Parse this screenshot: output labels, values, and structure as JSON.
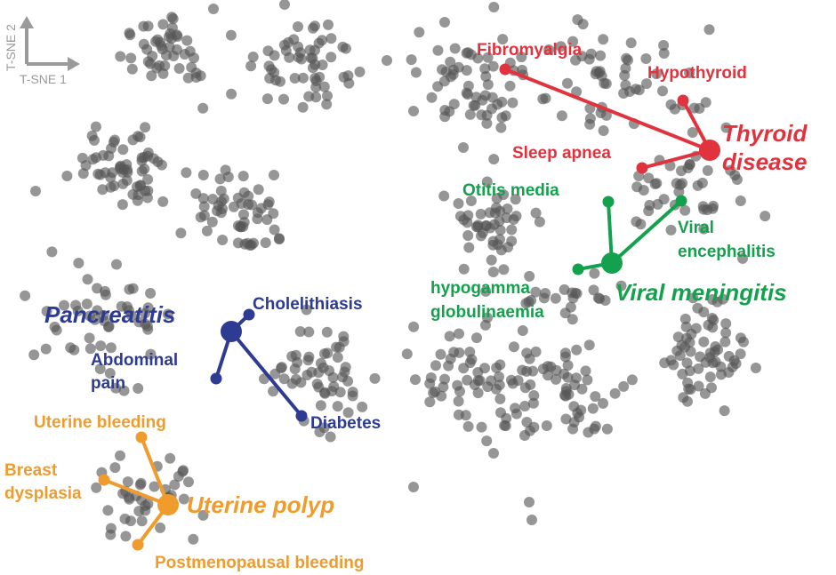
{
  "chart_data": {
    "type": "scatter",
    "xlabel": "T-SNE 1",
    "ylabel": "T-SNE 2",
    "grid": false,
    "legend": "none",
    "background_points_color": "#555555",
    "clusters": [
      {
        "name": "Thyroid disease",
        "name_lines": [
          "Thyroid",
          "disease"
        ],
        "color": "#e0333d",
        "hub": [
          798,
          169
        ],
        "spokes": [
          {
            "label": "Fibromyalgia",
            "point": [
              568,
              78
            ]
          },
          {
            "label": "Hypothyroid",
            "point": [
              768,
              113
            ]
          },
          {
            "label": "Sleep apnea",
            "point": [
              722,
              189
            ]
          }
        ]
      },
      {
        "name": "Viral meningitis",
        "name_lines": [
          "Viral meningitis"
        ],
        "color": "#14a14d",
        "hub": [
          688,
          296
        ],
        "spokes": [
          {
            "label": "Otitis media",
            "point": [
              684,
              227
            ]
          },
          {
            "label": "Viral encephalitis",
            "label_lines": [
              "Viral",
              "encephalitis"
            ],
            "point": [
              766,
              226
            ]
          },
          {
            "label": "hypogamma globulinaemia",
            "label_lines": [
              "hypogamma",
              "globulinaemia"
            ],
            "point": [
              650,
              303
            ]
          }
        ]
      },
      {
        "name": "Pancreatitis",
        "name_lines": [
          "Pancreatitis"
        ],
        "color": "#2e3b93",
        "hub": [
          260,
          373
        ],
        "spokes": [
          {
            "label": "Cholelithiasis",
            "point": [
              280,
              354
            ]
          },
          {
            "label": "Abdominal pain",
            "label_lines": [
              "Abdominal",
              "pain"
            ],
            "point": [
              243,
              426
            ]
          },
          {
            "label": "Diabetes",
            "point": [
              339,
              468
            ]
          }
        ]
      },
      {
        "name": "Uterine polyp",
        "name_lines": [
          "Uterine polyp"
        ],
        "color": "#f09c2d",
        "hub": [
          189,
          568
        ],
        "spokes": [
          {
            "label": "Uterine bleeding",
            "point": [
              159,
              492
            ]
          },
          {
            "label": "Breast dysplasia",
            "label_lines": [
              "Breast",
              "dysplasia"
            ],
            "point": [
              117,
              540
            ]
          },
          {
            "label": "Postmenopausal bleeding",
            "point": [
              155,
              613
            ]
          }
        ]
      }
    ],
    "background_groups": [
      {
        "center": [
          185,
          55
        ],
        "spread": [
          45,
          35
        ],
        "count": 45
      },
      {
        "center": [
          345,
          75
        ],
        "spread": [
          55,
          45
        ],
        "count": 55
      },
      {
        "center": [
          140,
          190
        ],
        "spread": [
          50,
          45
        ],
        "count": 60
      },
      {
        "center": [
          270,
          235
        ],
        "spread": [
          45,
          45
        ],
        "count": 55
      },
      {
        "center": [
          110,
          360
        ],
        "spread": [
          55,
          55
        ],
        "count": 50
      },
      {
        "center": [
          365,
          425
        ],
        "spread": [
          45,
          55
        ],
        "count": 55
      },
      {
        "center": [
          165,
          560
        ],
        "spread": [
          45,
          40
        ],
        "count": 40
      },
      {
        "center": [
          525,
          90
        ],
        "spread": [
          55,
          50
        ],
        "count": 55
      },
      {
        "center": [
          700,
          90
        ],
        "spread": [
          90,
          45
        ],
        "count": 60
      },
      {
        "center": [
          555,
          245
        ],
        "spread": [
          45,
          40
        ],
        "count": 45
      },
      {
        "center": [
          770,
          215
        ],
        "spread": [
          50,
          35
        ],
        "count": 40
      },
      {
        "center": [
          540,
          430
        ],
        "spread": [
          60,
          55
        ],
        "count": 70
      },
      {
        "center": [
          640,
          440
        ],
        "spread": [
          35,
          45
        ],
        "count": 45
      },
      {
        "center": [
          790,
          390
        ],
        "spread": [
          55,
          55
        ],
        "count": 65
      },
      {
        "center": [
          630,
          335
        ],
        "spread": [
          60,
          25
        ],
        "count": 25
      }
    ],
    "outlier_points": [
      [
        240,
        10
      ],
      [
        435,
        68
      ],
      [
        465,
        125
      ],
      [
        595,
        565
      ],
      [
        598,
        585
      ],
      [
        465,
        548
      ],
      [
        500,
        25
      ],
      [
        335,
        30
      ],
      [
        320,
        5
      ],
      [
        40,
        215
      ],
      [
        590,
        490
      ],
      [
        555,
        510
      ]
    ]
  }
}
